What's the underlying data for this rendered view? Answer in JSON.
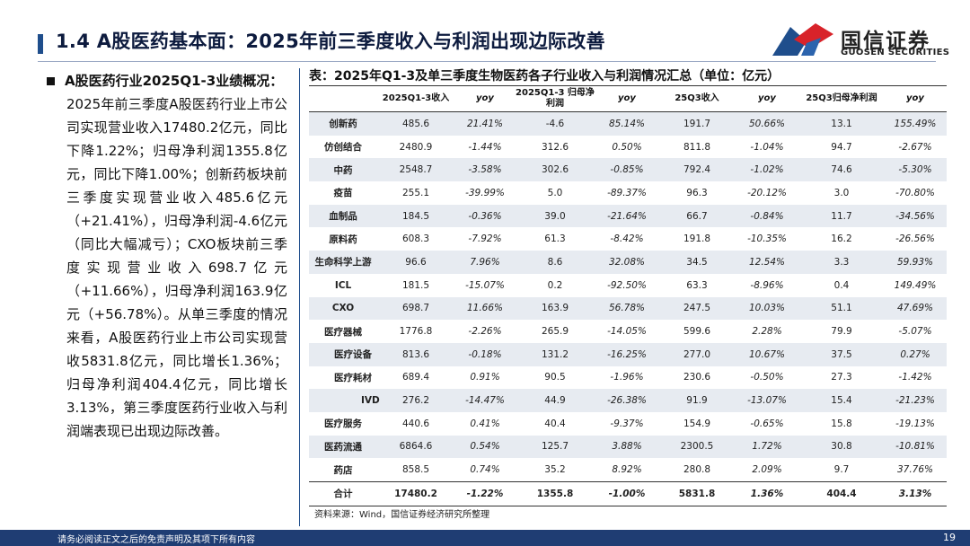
{
  "header": {
    "title": "1.4 A股医药基本面：2025年前三季度收入与利润出现边际改善",
    "logo_cn": "国信证券",
    "logo_en": "GUOSEN SECURITIES"
  },
  "left": {
    "heading": "A股医药行业2025Q1-3业绩概况：",
    "body": "2025年前三季度A股医药行业上市公司实现营业收入17480.2亿元，同比下降1.22%；归母净利润1355.8亿元，同比下降1.00%；创新药板块前三季度实现营业收入485.6亿元（+21.41%），归母净利润-4.6亿元（同比大幅减亏）；CXO板块前三季度实现营业收入698.7亿元（+11.66%），归母净利润163.9亿元（+56.78%）。从单三季度的情况来看，A股医药行业上市公司实现营收5831.8亿元，同比增长1.36%；归母净利润404.4亿元，同比增长3.13%，第三季度医药行业收入与利润端表现已出现边际改善。"
  },
  "table": {
    "caption": "表：2025年Q1-3及单三季度生物医药各子行业收入与利润情况汇总（单位：亿元）",
    "headers": [
      "",
      "2025Q1-3收入",
      "yoy",
      "2025Q1-3 归母净利润",
      "yoy",
      "25Q3收入",
      "yoy",
      "25Q3归母净利润",
      "yoy"
    ],
    "rows": [
      [
        "创新药",
        "485.6",
        "21.41%",
        "-4.6",
        "85.14%",
        "191.7",
        "50.66%",
        "13.1",
        "155.49%"
      ],
      [
        "仿创结合",
        "2480.9",
        "-1.44%",
        "312.6",
        "0.50%",
        "811.8",
        "-1.04%",
        "94.7",
        "-2.67%"
      ],
      [
        "中药",
        "2548.7",
        "-3.58%",
        "302.6",
        "-0.85%",
        "792.4",
        "-1.02%",
        "74.6",
        "-5.30%"
      ],
      [
        "疫苗",
        "255.1",
        "-39.99%",
        "5.0",
        "-89.37%",
        "96.3",
        "-20.12%",
        "3.0",
        "-70.80%"
      ],
      [
        "血制品",
        "184.5",
        "-0.36%",
        "39.0",
        "-21.64%",
        "66.7",
        "-0.84%",
        "11.7",
        "-34.56%"
      ],
      [
        "原料药",
        "608.3",
        "-7.92%",
        "61.3",
        "-8.42%",
        "191.8",
        "-10.35%",
        "16.2",
        "-26.56%"
      ],
      [
        "生命科学上游",
        "96.6",
        "7.96%",
        "8.6",
        "32.08%",
        "34.5",
        "12.54%",
        "3.3",
        "59.93%"
      ],
      [
        "ICL",
        "181.5",
        "-15.07%",
        "0.2",
        "-92.50%",
        "63.3",
        "-8.96%",
        "0.4",
        "149.49%"
      ],
      [
        "CXO",
        "698.7",
        "11.66%",
        "163.9",
        "56.78%",
        "247.5",
        "10.03%",
        "51.1",
        "47.69%"
      ],
      [
        "医疗器械",
        "1776.8",
        "-2.26%",
        "265.9",
        "-14.05%",
        "599.6",
        "2.28%",
        "79.9",
        "-5.07%"
      ],
      [
        "医疗设备",
        "813.6",
        "-0.18%",
        "131.2",
        "-16.25%",
        "277.0",
        "10.67%",
        "37.5",
        "0.27%"
      ],
      [
        "医疗耗材",
        "689.4",
        "0.91%",
        "90.5",
        "-1.96%",
        "230.6",
        "-0.50%",
        "27.3",
        "-1.42%"
      ],
      [
        "IVD",
        "276.2",
        "-14.47%",
        "44.9",
        "-26.38%",
        "91.9",
        "-13.07%",
        "15.4",
        "-21.23%"
      ],
      [
        "医疗服务",
        "440.6",
        "0.41%",
        "40.4",
        "-9.37%",
        "154.9",
        "-0.65%",
        "15.8",
        "-19.13%"
      ],
      [
        "医药流通",
        "6864.6",
        "0.54%",
        "125.7",
        "3.88%",
        "2300.5",
        "1.72%",
        "30.8",
        "-10.81%"
      ],
      [
        "药店",
        "858.5",
        "0.74%",
        "35.2",
        "8.92%",
        "280.8",
        "2.09%",
        "9.7",
        "37.76%"
      ]
    ],
    "total": [
      "合计",
      "17480.2",
      "-1.22%",
      "1355.8",
      "-1.00%",
      "5831.8",
      "1.36%",
      "404.4",
      "3.13%"
    ],
    "source": "资料来源：Wind，国信证券经济研究所整理"
  },
  "footer": {
    "disclaimer": "请务必阅读正文之后的免责声明及其项下所有内容",
    "page": "19"
  },
  "colors": {
    "navy": "#1f3d73",
    "accent_red": "#d8232a",
    "row_alt": "#e7ebf1"
  }
}
